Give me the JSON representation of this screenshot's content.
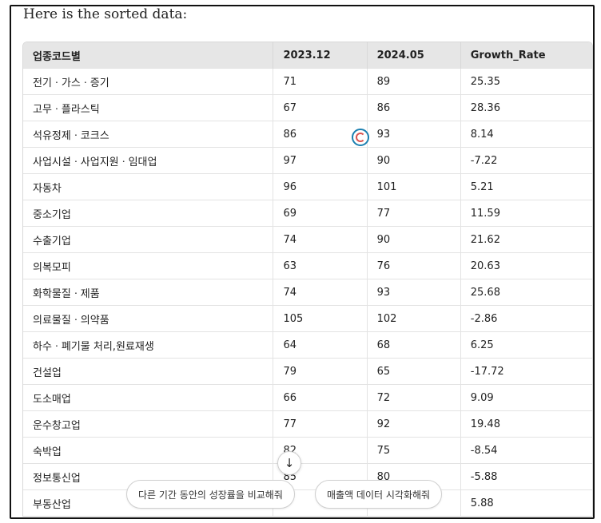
{
  "intro_text": "Here is the sorted data:",
  "table": {
    "headers": [
      "업종코드별",
      "2023.12",
      "2024.05",
      "Growth_Rate"
    ],
    "rows": [
      [
        "전기ㆍ가스ㆍ증기",
        "71",
        "89",
        "25.35"
      ],
      [
        "고무ㆍ플라스틱",
        "67",
        "86",
        "28.36"
      ],
      [
        "석유정제ㆍ코크스",
        "86",
        "93",
        "8.14"
      ],
      [
        "사업시설ㆍ사업지원ㆍ임대업",
        "97",
        "90",
        "-7.22"
      ],
      [
        "자동차",
        "96",
        "101",
        "5.21"
      ],
      [
        "중소기업",
        "69",
        "77",
        "11.59"
      ],
      [
        "수출기업",
        "74",
        "90",
        "21.62"
      ],
      [
        "의복모피",
        "63",
        "76",
        "20.63"
      ],
      [
        "화학물질ㆍ제품",
        "74",
        "93",
        "25.68"
      ],
      [
        "의료물질ㆍ의약품",
        "105",
        "102",
        "-2.86"
      ],
      [
        "하수ㆍ폐기물 처리,원료재생",
        "64",
        "68",
        "6.25"
      ],
      [
        "건설업",
        "79",
        "65",
        "-17.72"
      ],
      [
        "도소매업",
        "66",
        "72",
        "9.09"
      ],
      [
        "운수창고업",
        "77",
        "92",
        "19.48"
      ],
      [
        "숙박업",
        "82",
        "75",
        "-8.54"
      ],
      [
        "정보통신업",
        "85",
        "80",
        "-5.88"
      ],
      [
        "부동산업",
        "",
        "",
        "5.88"
      ]
    ]
  },
  "suggestions": [
    "다른 기간 동안의 성장률을 비교해줘",
    "매출액 데이터 시각화해줘"
  ],
  "icons": {
    "scroll_down": "↓"
  }
}
